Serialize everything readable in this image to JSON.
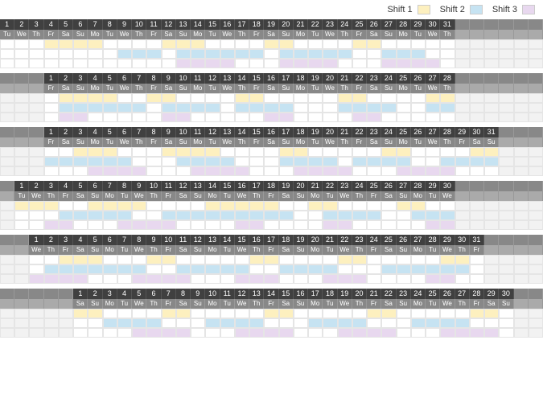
{
  "legend": {
    "items": [
      {
        "label": "Shift 1",
        "color": "#fdf0bf"
      },
      {
        "label": "Shift 2",
        "color": "#c6e3f2"
      },
      {
        "label": "Shift 3",
        "color": "#e8d8ef"
      }
    ]
  },
  "colors": {
    "shift1": "#fdf0bf",
    "shift2": "#c6e3f2",
    "shift3": "#e8d8ef",
    "header_num_bg": "#404040",
    "header_dow_bg": "#888888",
    "header_blank_bg": "#888888",
    "cell_border": "#e5e5e5"
  },
  "grid": {
    "columns_total": 37,
    "shift_rows": 3
  },
  "dow_labels": [
    "Su",
    "Mo",
    "Tu",
    "We",
    "Th",
    "Fr",
    "Sa"
  ],
  "months": [
    {
      "days": 31,
      "lead": 0,
      "first_dow": 2,
      "shifts": {
        "1": [
          [
            4,
            7
          ],
          [
            12,
            14
          ],
          [
            19,
            20
          ],
          [
            25,
            26
          ]
        ],
        "2": [
          [
            9,
            11
          ],
          [
            13,
            18
          ],
          [
            20,
            24
          ],
          [
            27,
            29
          ]
        ],
        "3": [
          [
            13,
            16
          ],
          [
            20,
            23
          ],
          [
            27,
            30
          ]
        ]
      }
    },
    {
      "days": 28,
      "lead": 3,
      "first_dow": 5,
      "shifts": {
        "1": [
          [
            2,
            5
          ],
          [
            8,
            9
          ],
          [
            14,
            15
          ],
          [
            21,
            22
          ],
          [
            27,
            28
          ]
        ],
        "2": [
          [
            2,
            7
          ],
          [
            9,
            12
          ],
          [
            14,
            17
          ],
          [
            21,
            24
          ],
          [
            27,
            28
          ]
        ],
        "3": [
          [
            2,
            3
          ],
          [
            9,
            10
          ],
          [
            16,
            17
          ],
          [
            22,
            23
          ]
        ]
      }
    },
    {
      "days": 31,
      "lead": 3,
      "first_dow": 5,
      "shifts": {
        "1": [
          [
            3,
            5
          ],
          [
            9,
            12
          ],
          [
            17,
            18
          ],
          [
            24,
            25
          ],
          [
            30,
            31
          ]
        ],
        "2": [
          [
            1,
            6
          ],
          [
            10,
            13
          ],
          [
            17,
            20
          ],
          [
            22,
            25
          ],
          [
            28,
            31
          ]
        ],
        "3": [
          [
            4,
            7
          ],
          [
            11,
            14
          ],
          [
            18,
            21
          ],
          [
            25,
            28
          ]
        ]
      }
    },
    {
      "days": 30,
      "lead": 1,
      "first_dow": 2,
      "shifts": {
        "1": [
          [
            1,
            3
          ],
          [
            6,
            9
          ],
          [
            14,
            18
          ],
          [
            21,
            22
          ],
          [
            27,
            28
          ]
        ],
        "2": [
          [
            4,
            8
          ],
          [
            11,
            19
          ],
          [
            22,
            25
          ],
          [
            28,
            30
          ]
        ],
        "3": [
          [
            3,
            4
          ],
          [
            8,
            11
          ],
          [
            16,
            17
          ],
          [
            22,
            23
          ],
          [
            29,
            30
          ]
        ]
      }
    },
    {
      "days": 31,
      "lead": 2,
      "first_dow": 3,
      "shifts": {
        "1": [
          [
            3,
            5
          ],
          [
            9,
            10
          ],
          [
            16,
            17
          ],
          [
            22,
            23
          ],
          [
            29,
            30
          ]
        ],
        "2": [
          [
            2,
            8
          ],
          [
            11,
            15
          ],
          [
            18,
            21
          ],
          [
            25,
            30
          ]
        ],
        "3": [
          [
            1,
            4
          ],
          [
            8,
            11
          ],
          [
            15,
            17
          ],
          [
            21,
            23
          ],
          [
            28,
            29
          ]
        ]
      }
    },
    {
      "days": 30,
      "lead": 5,
      "first_dow": 6,
      "shifts": {
        "1": [
          [
            1,
            2
          ],
          [
            7,
            8
          ],
          [
            14,
            15
          ],
          [
            21,
            22
          ],
          [
            28,
            29
          ]
        ],
        "2": [
          [
            3,
            6
          ],
          [
            10,
            13
          ],
          [
            17,
            20
          ],
          [
            24,
            27
          ]
        ],
        "3": [
          [
            5,
            8
          ],
          [
            12,
            15
          ],
          [
            19,
            22
          ],
          [
            26,
            29
          ]
        ]
      }
    }
  ]
}
